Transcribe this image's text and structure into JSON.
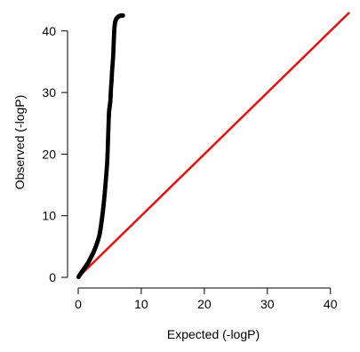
{
  "chart_data": {
    "type": "scatter",
    "title": "",
    "xlabel": "Expected (-logP)",
    "ylabel": "Observed (-logP)",
    "xlim": [
      0,
      43
    ],
    "ylim": [
      0,
      43
    ],
    "x_ticks": [
      0,
      10,
      20,
      30,
      40
    ],
    "y_ticks": [
      0,
      10,
      20,
      30,
      40
    ],
    "grid": false,
    "legend": "none",
    "series": [
      {
        "kind": "points",
        "color": "#000000",
        "points": [
          [
            0.05,
            0.05
          ],
          [
            0.2,
            0.3
          ],
          [
            0.4,
            0.6
          ],
          [
            0.6,
            0.9
          ],
          [
            0.8,
            1.2
          ],
          [
            1.0,
            1.5
          ],
          [
            1.2,
            1.8
          ],
          [
            1.4,
            2.1
          ],
          [
            1.6,
            2.4
          ],
          [
            1.8,
            2.8
          ],
          [
            2.0,
            3.2
          ],
          [
            2.2,
            3.6
          ],
          [
            2.4,
            4.0
          ],
          [
            2.6,
            4.5
          ],
          [
            2.8,
            5.0
          ],
          [
            3.0,
            5.6
          ],
          [
            3.2,
            6.2
          ],
          [
            3.4,
            7.0
          ],
          [
            3.5,
            7.6
          ],
          [
            3.6,
            8.3
          ],
          [
            3.7,
            9.0
          ],
          [
            3.8,
            9.8
          ],
          [
            3.9,
            10.6
          ],
          [
            4.0,
            11.5
          ],
          [
            4.1,
            12.5
          ],
          [
            4.2,
            13.6
          ],
          [
            4.3,
            14.8
          ],
          [
            4.4,
            16.0
          ],
          [
            4.5,
            17.3
          ],
          [
            4.6,
            18.7
          ],
          [
            4.65,
            20.0
          ],
          [
            4.7,
            21.5
          ],
          [
            4.75,
            23.0
          ],
          [
            4.8,
            24.5
          ],
          [
            4.85,
            26.0
          ],
          [
            4.9,
            27.0
          ],
          [
            5.0,
            27.8
          ],
          [
            5.1,
            28.6
          ],
          [
            5.15,
            29.6
          ],
          [
            5.2,
            30.8
          ],
          [
            5.3,
            32.0
          ],
          [
            5.35,
            33.2
          ],
          [
            5.45,
            34.6
          ],
          [
            5.55,
            36.0
          ],
          [
            5.6,
            37.4
          ],
          [
            5.65,
            38.6
          ],
          [
            5.7,
            39.8
          ],
          [
            5.75,
            40.6
          ],
          [
            5.85,
            41.4
          ],
          [
            6.0,
            41.9
          ],
          [
            6.2,
            42.2
          ],
          [
            6.5,
            42.4
          ],
          [
            6.8,
            42.5
          ],
          [
            7.1,
            42.5
          ]
        ]
      },
      {
        "kind": "line",
        "color": "#e8100c",
        "points": [
          [
            0,
            0
          ],
          [
            43,
            43
          ]
        ]
      }
    ]
  }
}
